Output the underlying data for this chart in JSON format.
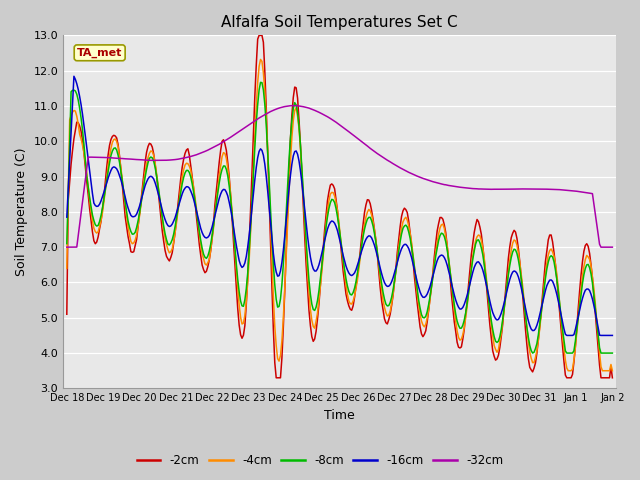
{
  "title": "Alfalfa Soil Temperatures Set C",
  "xlabel": "Time",
  "ylabel": "Soil Temperature (C)",
  "ylim": [
    3.0,
    13.0
  ],
  "yticks": [
    3.0,
    4.0,
    5.0,
    6.0,
    7.0,
    8.0,
    9.0,
    10.0,
    11.0,
    12.0,
    13.0
  ],
  "xtick_labels": [
    "Dec 18",
    "Dec 19",
    "Dec 20",
    "Dec 21",
    "Dec 22",
    "Dec 23",
    "Dec 24",
    "Dec 25",
    "Dec 26",
    "Dec 27",
    "Dec 28",
    "Dec 29",
    "Dec 30",
    "Dec 31",
    "Jan 1",
    "Jan 2"
  ],
  "colors": {
    "-2cm": "#cc0000",
    "-4cm": "#ff8c00",
    "-8cm": "#00bb00",
    "-16cm": "#0000cc",
    "-32cm": "#aa00aa"
  },
  "legend_label": "TA_met",
  "legend_box_facecolor": "#ffffcc",
  "legend_text_color": "#aa0000",
  "legend_box_edgecolor": "#999900",
  "plot_bg_color": "#e8e8e8",
  "grid_color": "#ffffff",
  "line_width": 1.1
}
